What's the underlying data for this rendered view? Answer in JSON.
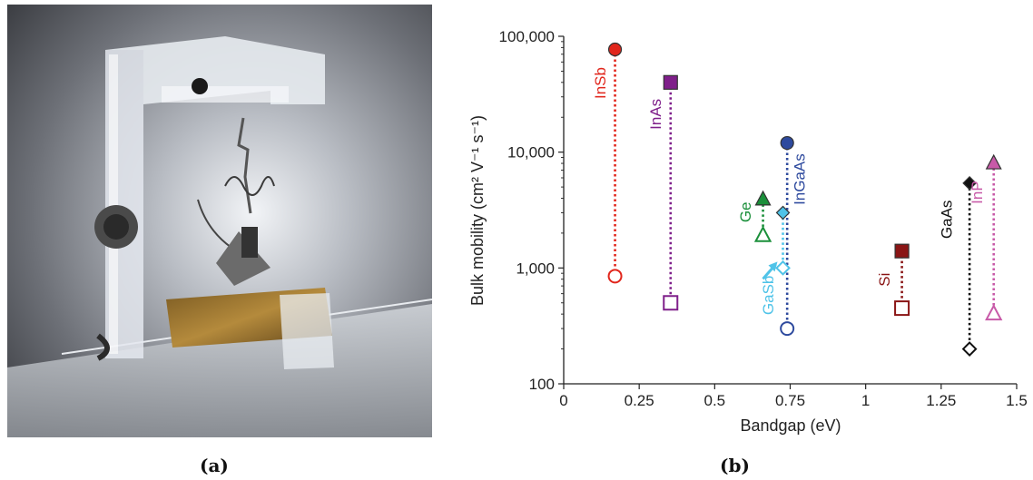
{
  "panel_a_label": "(a)",
  "panel_b_label": "(b)",
  "colors": {
    "InSb": "#e1261c",
    "InAs": "#7f1f8a",
    "InGaAs": "#2e4a9e",
    "Ge": "#1a8f3a",
    "GaSb": "#4fc3e8",
    "Si": "#8a1515",
    "GaAs": "#111111",
    "InP": "#c85aa8"
  },
  "chart_data": {
    "type": "scatter",
    "title": "",
    "xlabel": "Bandgap (eV)",
    "ylabel": "Bulk mobility (cm² V⁻¹ s⁻¹)",
    "xlim": [
      0,
      1.5
    ],
    "ylim": [
      100,
      100000
    ],
    "y_scale": "log",
    "x_ticks": [
      0,
      0.25,
      0.5,
      0.75,
      1,
      1.25,
      1.5
    ],
    "x_tick_labels": [
      "0",
      "0.25",
      "0.5",
      "0.75",
      "1",
      "1.25",
      "1.5"
    ],
    "y_ticks": [
      100,
      1000,
      10000,
      100000
    ],
    "y_tick_labels": [
      "100",
      "1,000",
      "10,000",
      "100,000"
    ],
    "grid": false,
    "series": [
      {
        "name": "InSb",
        "bandgap": 0.17,
        "electron_mobility": 77000,
        "hole_mobility": 850,
        "marker": "circle"
      },
      {
        "name": "InAs",
        "bandgap": 0.354,
        "electron_mobility": 40000,
        "hole_mobility": 500,
        "marker": "square"
      },
      {
        "name": "InGaAs",
        "bandgap": 0.74,
        "electron_mobility": 12000,
        "hole_mobility": 300,
        "marker": "circle"
      },
      {
        "name": "Ge",
        "bandgap": 0.66,
        "electron_mobility": 3900,
        "hole_mobility": 1900,
        "marker": "triangle"
      },
      {
        "name": "GaSb",
        "bandgap": 0.726,
        "electron_mobility": 3000,
        "hole_mobility": 1000,
        "marker": "diamond"
      },
      {
        "name": "Si",
        "bandgap": 1.12,
        "electron_mobility": 1400,
        "hole_mobility": 450,
        "marker": "square"
      },
      {
        "name": "GaAs",
        "bandgap": 1.344,
        "electron_mobility": 5400,
        "hole_mobility": 200,
        "marker": "diamond"
      },
      {
        "name": "InP",
        "bandgap": 1.424,
        "electron_mobility": 8000,
        "hole_mobility": 400,
        "marker": "triangle"
      }
    ]
  }
}
